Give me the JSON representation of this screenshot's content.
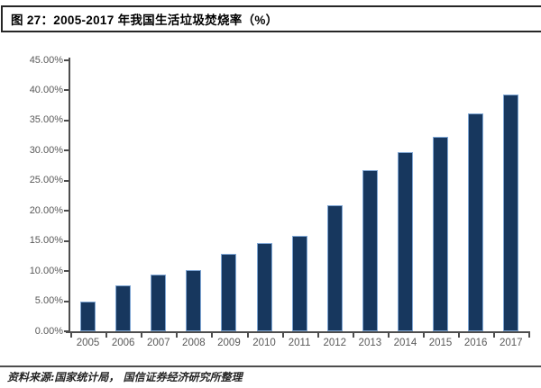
{
  "header": {
    "title": "图 27：2005-2017 年我国生活垃圾焚烧率（%）"
  },
  "footer": {
    "source": "资料来源:国家统计局， 国信证券经济研究所整理"
  },
  "colors": {
    "bar_fill": "#17375E",
    "bar_border": "#7FA6D4",
    "axis": "#4d4d4d",
    "tick_label": "#595959"
  },
  "chart_data": {
    "type": "bar",
    "title": "图 27：2005-2017 年我国生活垃圾焚烧率（%）",
    "xlabel": "",
    "ylabel": "",
    "categories": [
      "2005",
      "2006",
      "2007",
      "2008",
      "2009",
      "2010",
      "2011",
      "2012",
      "2013",
      "2014",
      "2015",
      "2016",
      "2017"
    ],
    "values": [
      5.0,
      7.6,
      9.4,
      10.1,
      12.9,
      14.6,
      15.8,
      21.0,
      26.8,
      29.8,
      32.3,
      36.2,
      39.3
    ],
    "ylim": [
      0,
      45
    ],
    "ytick_step": 5,
    "ytick_labels": [
      "0.00%",
      "5.00%",
      "10.00%",
      "15.00%",
      "20.00%",
      "25.00%",
      "30.00%",
      "35.00%",
      "40.00%",
      "45.00%"
    ],
    "grid": false,
    "legend": "none",
    "source_note": "资料来源:国家统计局， 国信证券经济研究所整理"
  }
}
